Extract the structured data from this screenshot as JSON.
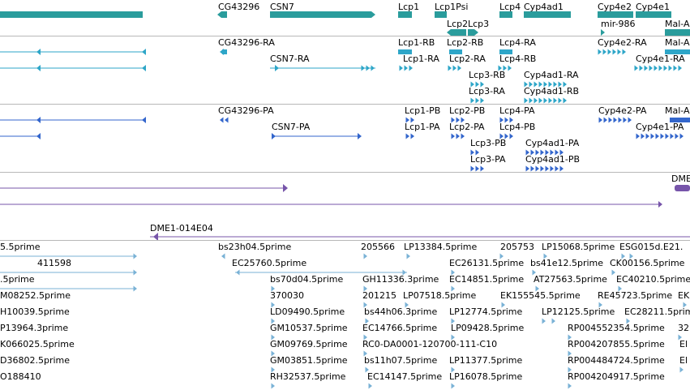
{
  "browser": {
    "colors": {
      "gene": "#2a9c9c",
      "mrna_flybase": "#2ea6c8",
      "protein": "#3366cc",
      "clone": "#7755aa",
      "est": "#7ab2d6",
      "separator": "#b8b8b8"
    }
  },
  "tracks": {
    "gene_span": {
      "labels": [
        {
          "text": "CG43296"
        },
        {
          "text": "CSN7"
        },
        {
          "text": "Lcp1"
        },
        {
          "text": "Lcp1Psi"
        },
        {
          "text": "Lcp2"
        },
        {
          "text": "Lcp3"
        },
        {
          "text": "Lcp4"
        },
        {
          "text": "Cyp4ad1"
        },
        {
          "text": "Cyp4e2"
        },
        {
          "text": "Cyp4e1"
        },
        {
          "text": "mir-986"
        },
        {
          "text": "Mal-A"
        }
      ]
    },
    "transcripts": {
      "labels": [
        {
          "text": "CG43296-RA"
        },
        {
          "text": "Lcp1-RB"
        },
        {
          "text": "Lcp2-RB"
        },
        {
          "text": "Lcp4-RA"
        },
        {
          "text": "Cyp4e2-RA"
        },
        {
          "text": "Mal-A"
        },
        {
          "text": "CSN7-RA"
        },
        {
          "text": "Lcp1-RA"
        },
        {
          "text": "Lcp2-RA"
        },
        {
          "text": "Lcp4-RB"
        },
        {
          "text": "Cyp4e1-RA"
        },
        {
          "text": "Lcp3-RB"
        },
        {
          "text": "Cyp4ad1-RA"
        },
        {
          "text": "Lcp3-RA"
        },
        {
          "text": "Cyp4ad1-RB"
        }
      ]
    },
    "proteins": {
      "labels": [
        {
          "text": "CG43296-PA"
        },
        {
          "text": "Lcp1-PB"
        },
        {
          "text": "Lcp2-PB"
        },
        {
          "text": "Lcp4-PA"
        },
        {
          "text": "Cyp4e2-PA"
        },
        {
          "text": "Mal-A"
        },
        {
          "text": "CSN7-PA"
        },
        {
          "text": "Lcp1-PA"
        },
        {
          "text": "Lcp2-PA"
        },
        {
          "text": "Lcp4-PB"
        },
        {
          "text": "Cyp4e1-PA"
        },
        {
          "text": "Lcp3-PB"
        },
        {
          "text": "Cyp4ad1-PA"
        },
        {
          "text": "Lcp3-PA"
        },
        {
          "text": "Cyp4ad1-PB"
        }
      ]
    },
    "clones": {
      "labels": [
        {
          "text": "DME"
        },
        {
          "text": "DME1-014E04"
        }
      ]
    },
    "ests": {
      "rows": [
        [
          {
            "text": "5.5prime"
          },
          {
            "text": "bs23h04.5prime"
          },
          {
            "text": "205566"
          },
          {
            "text": "LP13384.5prime"
          },
          {
            "text": "205753"
          },
          {
            "text": "LP15068.5prime"
          },
          {
            "text": "ESG015d.E21."
          }
        ],
        [
          {
            "text": "411598"
          },
          {
            "text": "EC25760.5prime"
          },
          {
            "text": "EC26131.5prime"
          },
          {
            "text": "bs41e12.5prime"
          },
          {
            "text": "CK00156.5prime"
          }
        ],
        [
          {
            "text": ".5prime"
          },
          {
            "text": "bs70d04.5prime"
          },
          {
            "text": "GH11336.3prime"
          },
          {
            "text": "EC14851.5prime"
          },
          {
            "text": "AT27563.5prime"
          },
          {
            "text": "EC40210.5prime"
          }
        ],
        [
          {
            "text": "M08252.5prime"
          },
          {
            "text": "370030"
          },
          {
            "text": "201215"
          },
          {
            "text": "LP07518.5prime"
          },
          {
            "text": "EK155545.5prime"
          },
          {
            "text": "RE45723.5prime"
          },
          {
            "text": "EK"
          }
        ],
        [
          {
            "text": "H10039.5prime"
          },
          {
            "text": "LD09490.5prime"
          },
          {
            "text": "bs44h06.3prime"
          },
          {
            "text": "LP12774.5prime"
          },
          {
            "text": "LP12125.5prime"
          },
          {
            "text": "EC28211.5prime"
          }
        ],
        [
          {
            "text": "P13964.3prime"
          },
          {
            "text": "GM10537.5prime"
          },
          {
            "text": "EC14766.5prime"
          },
          {
            "text": "LP09428.5prime"
          },
          {
            "text": "RP004552354.5prime"
          },
          {
            "text": "32"
          }
        ],
        [
          {
            "text": "K066025.5prime"
          },
          {
            "text": "GM09769.5prime"
          },
          {
            "text": "RC0-DA0001-120700-111-C10"
          },
          {
            "text": "RP004207855.5prime"
          },
          {
            "text": "El"
          }
        ],
        [
          {
            "text": "D36802.5prime"
          },
          {
            "text": "GM03851.5prime"
          },
          {
            "text": "bs11h07.5prime"
          },
          {
            "text": "LP11377.5prime"
          },
          {
            "text": "RP004484724.5prime"
          },
          {
            "text": "El"
          }
        ],
        [
          {
            "text": "O188410"
          },
          {
            "text": "RH32537.5prime"
          },
          {
            "text": "EC14147.5prime"
          },
          {
            "text": "LP16078.5prime"
          },
          {
            "text": "RP004204917.5prime"
          }
        ]
      ]
    }
  }
}
